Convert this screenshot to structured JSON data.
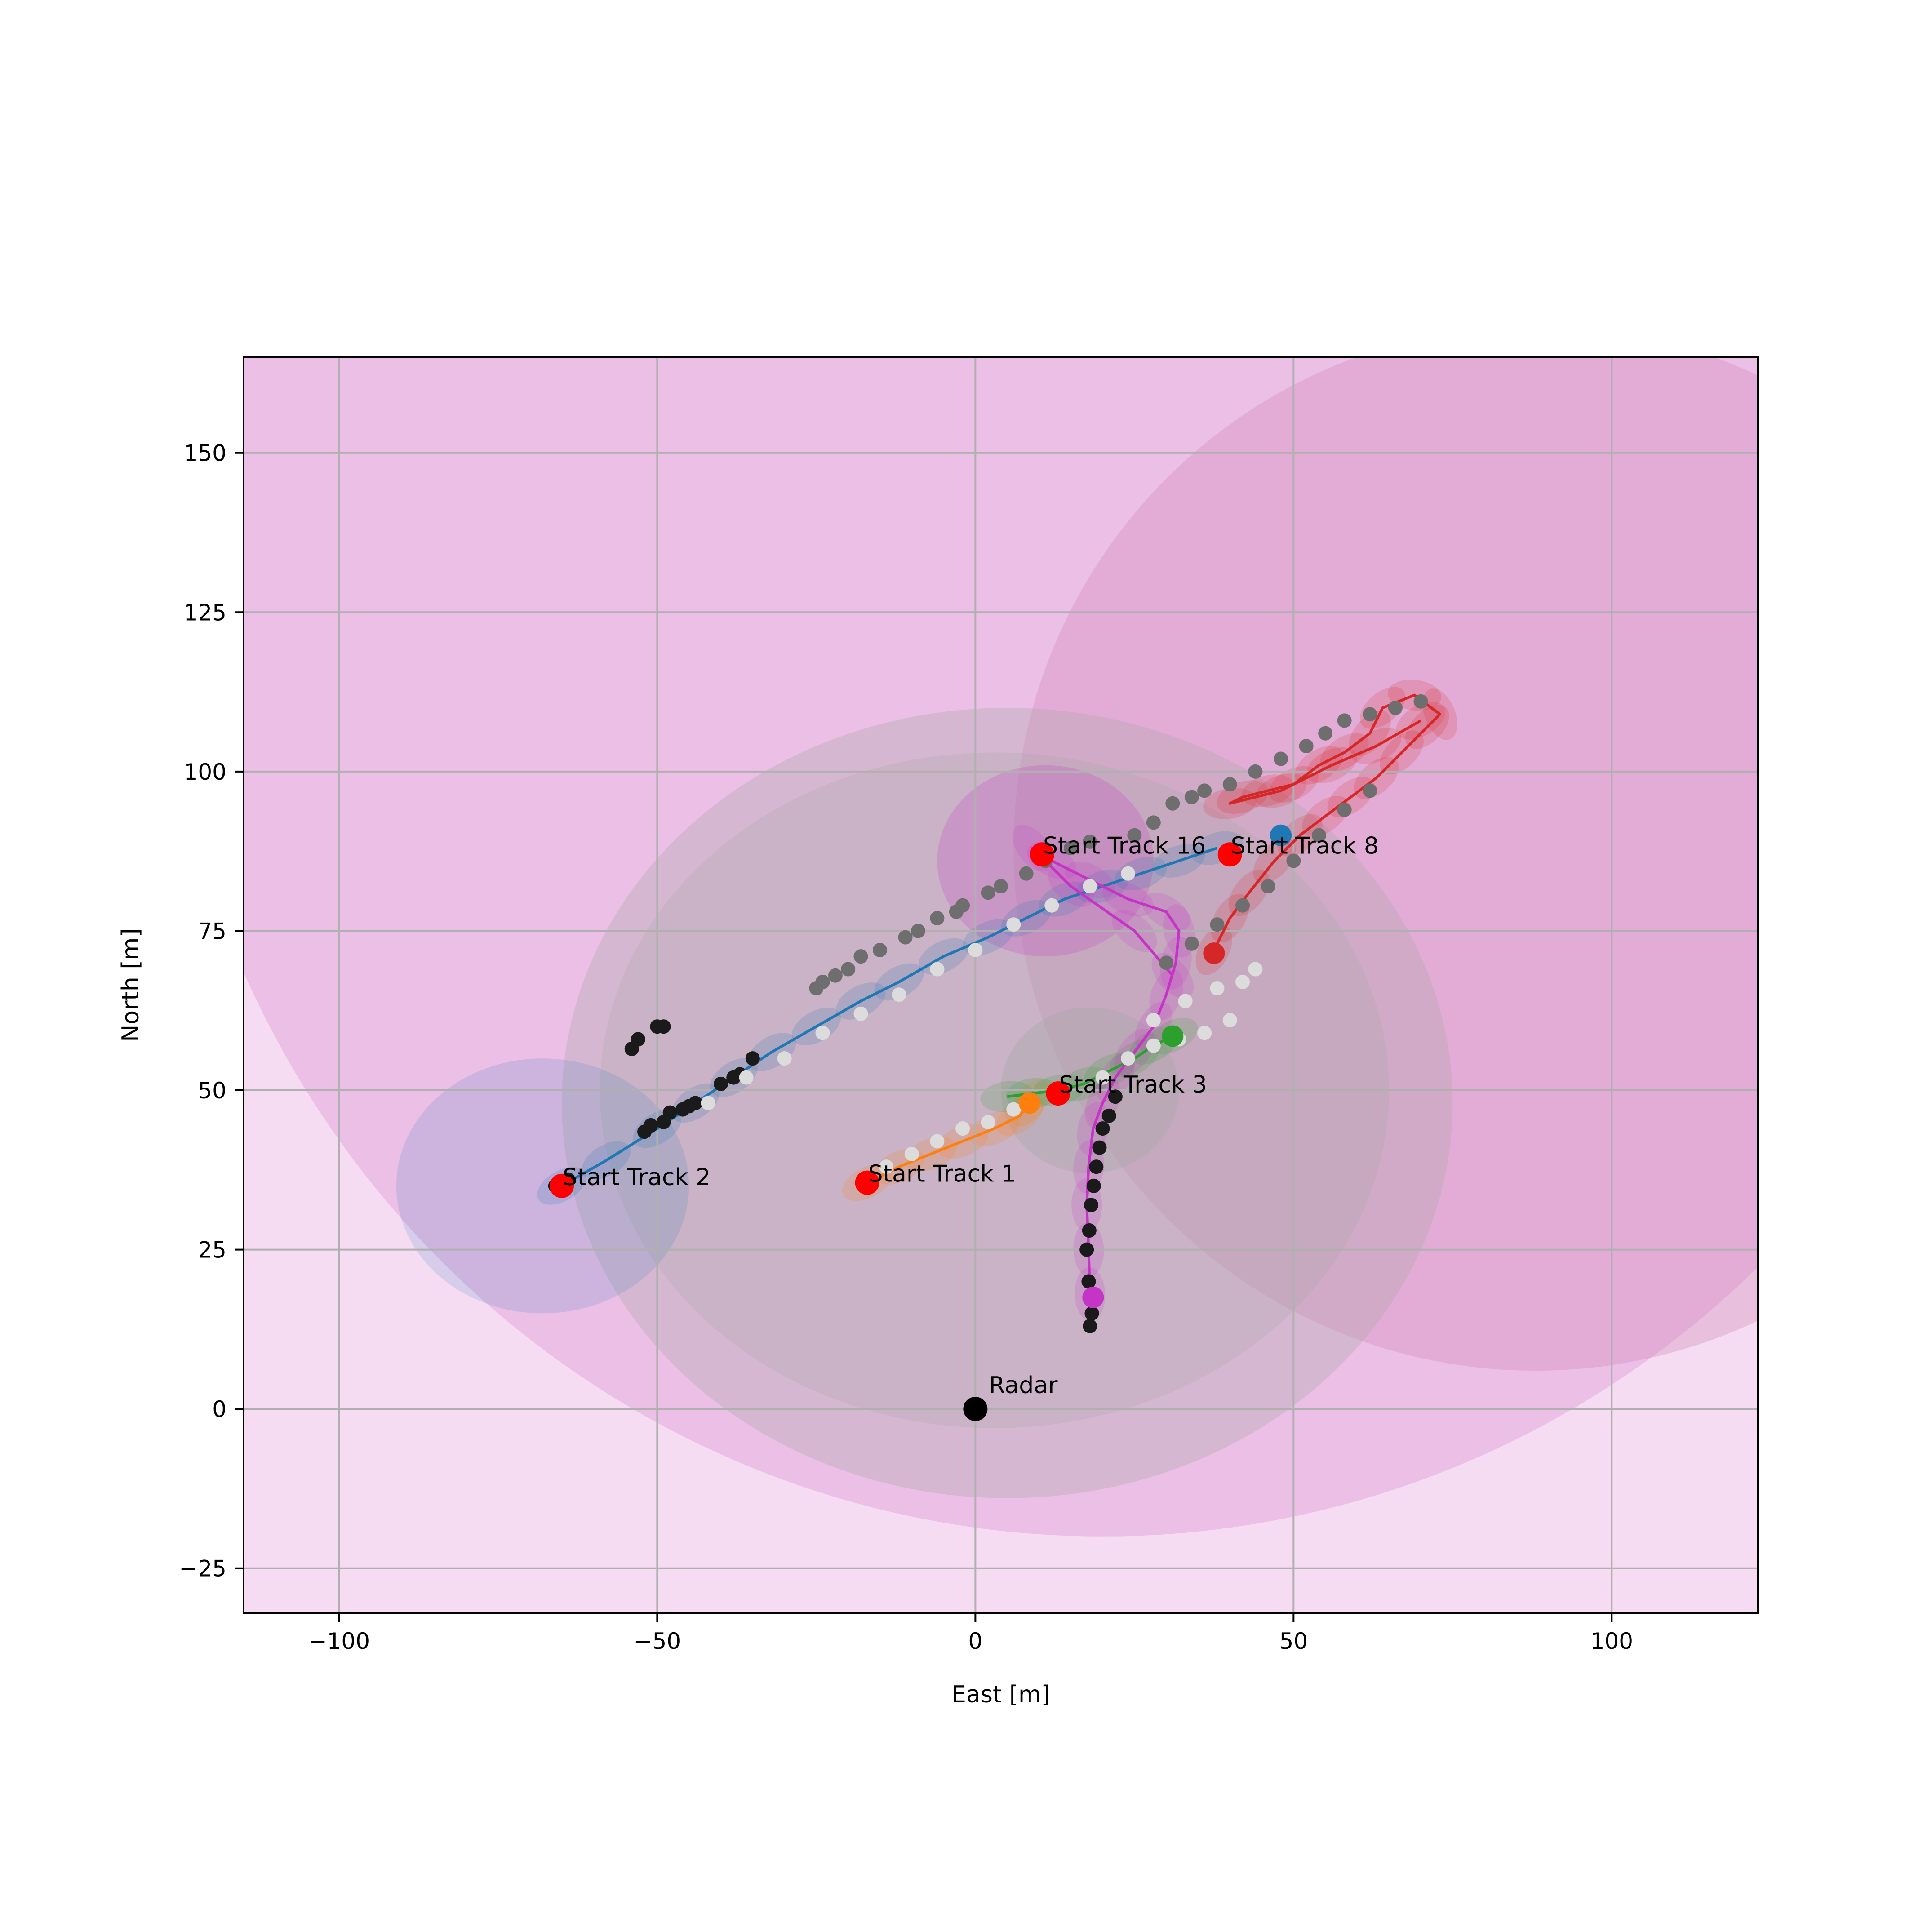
{
  "chart_data": {
    "type": "scatter",
    "xlabel": "East [m]",
    "ylabel": "North [m]",
    "xlim": [
      -115,
      123
    ],
    "ylim": [
      -32,
      165
    ],
    "xticks": [
      -100,
      -50,
      0,
      50,
      100
    ],
    "yticks": [
      -25,
      0,
      25,
      50,
      75,
      100,
      125,
      150
    ],
    "xtick_labels": [
      "−100",
      "−50",
      "0",
      "50",
      "100"
    ],
    "ytick_labels": [
      "−25",
      "0",
      "25",
      "50",
      "75",
      "100",
      "125",
      "150"
    ],
    "grid": true,
    "colors": {
      "background_band": "#f5dcf2",
      "big_circle_1": "#e2a7dc",
      "big_circle_2": "#d28ab8",
      "gray_circle": "#a6a6a6",
      "track1": "#ff7f0e",
      "track2": "#1f77b4",
      "track3": "#2ca02c",
      "track8": "#d62728",
      "track16": "#c535c5",
      "start_marker": "#ff0000",
      "radar": "#000000",
      "detections_dark": "#1a1a1a",
      "detections_gray": "#6e6e6e",
      "detections_light": "#dcdcdc"
    },
    "uncertainty_regions": [
      {
        "cx": 20,
        "cy": 130,
        "rx": 148,
        "ry": 150,
        "color": "big_circle_1",
        "opacity": 0.55
      },
      {
        "cx": 88,
        "cy": 88,
        "rx": 82,
        "ry": 82,
        "color": "big_circle_2",
        "opacity": 0.35
      },
      {
        "cx": 5,
        "cy": 48,
        "rx": 70,
        "ry": 62,
        "color": "gray_circle",
        "opacity": 0.3
      },
      {
        "cx": 3,
        "cy": 50,
        "rx": 62,
        "ry": 53,
        "color": "gray_circle",
        "opacity": 0.25
      },
      {
        "cx": 18,
        "cy": 50,
        "rx": 14,
        "ry": 13,
        "color": "gray_circle",
        "opacity": 0.35
      },
      {
        "cx": -68,
        "cy": 35,
        "rx": 23,
        "ry": 20,
        "color": "track2",
        "opacity": 0.15
      },
      {
        "cx": 11,
        "cy": 86,
        "rx": 17,
        "ry": 15,
        "color": "track16",
        "opacity": 0.22
      }
    ],
    "series": [
      {
        "name": "Track 1",
        "color": "track1",
        "x": [
          -17,
          -12,
          -7,
          -2,
          3,
          7,
          8.5
        ],
        "y": [
          35.5,
          38,
          40,
          42,
          44,
          46,
          48
        ]
      },
      {
        "name": "Track 2",
        "color": "track2",
        "x": [
          -65,
          -58,
          -50,
          -44,
          -38,
          -32,
          -25,
          -18,
          -12,
          -5,
          2,
          8,
          14,
          20,
          26,
          32,
          38
        ],
        "y": [
          35,
          39,
          44,
          48,
          52,
          56,
          60,
          64,
          67,
          71,
          74,
          77,
          80,
          82,
          84,
          86,
          88
        ]
      },
      {
        "name": "Track 3",
        "color": "track3",
        "x": [
          5,
          9,
          13,
          17,
          21,
          25,
          28,
          31
        ],
        "y": [
          49,
          49.5,
          50,
          51,
          53,
          55,
          57,
          58.5
        ]
      },
      {
        "name": "Track 8",
        "color": "track8",
        "x": [
          37.5,
          40,
          43,
          47,
          51,
          55,
          59,
          63,
          67,
          71,
          73,
          69,
          64,
          62,
          58,
          54,
          50,
          46,
          42,
          40,
          48,
          56,
          63,
          70
        ],
        "y": [
          72,
          77,
          81,
          86,
          90,
          93,
          96,
          99,
          103,
          107,
          109,
          112,
          110,
          106,
          103,
          101,
          98,
          97,
          96,
          95,
          97,
          101,
          104,
          108
        ]
      },
      {
        "name": "Track 16",
        "color": "track16",
        "x": [
          18,
          17.8,
          17.5,
          17.8,
          18.5,
          20,
          22,
          25,
          28,
          30,
          31.5,
          32,
          30,
          24,
          18,
          12,
          9,
          15,
          25,
          31
        ],
        "y": [
          18,
          25,
          32,
          38,
          44,
          48,
          52,
          56,
          60,
          65,
          70,
          75,
          78,
          80,
          83,
          86,
          88,
          82,
          75,
          68
        ]
      }
    ],
    "detections": {
      "dark": {
        "x": [
          -66,
          -64,
          -52,
          -51,
          -49,
          -48,
          -46,
          -45,
          -44,
          -54,
          -53,
          -50,
          -49,
          -40,
          -38,
          -37,
          -35,
          18,
          18.3,
          17.8,
          17.5,
          17.9,
          18.2,
          18.6,
          19,
          19.5,
          20,
          21,
          22
        ],
        "y": [
          35,
          36,
          43.5,
          44.5,
          45,
          46.5,
          47,
          47.5,
          48,
          56.5,
          58,
          60,
          60,
          51,
          52,
          52.5,
          55,
          13,
          15,
          20,
          25,
          28,
          32,
          35,
          38,
          41,
          44,
          46,
          49
        ]
      },
      "gray": {
        "x": [
          -25,
          -24,
          -22,
          -20,
          -18,
          -15,
          -11,
          -9,
          -6,
          -3,
          -2,
          2,
          4,
          8,
          11,
          15,
          18,
          25,
          28,
          31,
          34,
          36,
          40,
          44,
          48,
          52,
          55,
          58,
          62,
          66,
          70,
          30,
          34,
          38,
          42,
          46,
          50,
          54,
          58,
          62
        ],
        "y": [
          66,
          67,
          68,
          69,
          71,
          72,
          74,
          75,
          77,
          78,
          79,
          81,
          82,
          84,
          86,
          88,
          89,
          90,
          92,
          95,
          96,
          97,
          98,
          100,
          102,
          104,
          106,
          108,
          109,
          110,
          111,
          70,
          73,
          76,
          79,
          82,
          86,
          90,
          94,
          97
        ]
      },
      "light": {
        "x": [
          -42,
          -36,
          -30,
          -24,
          -18,
          -12,
          -6,
          0,
          6,
          12,
          18,
          24,
          28,
          33,
          38,
          42,
          44,
          -14,
          -10,
          -6,
          -2,
          2,
          6,
          20,
          24,
          28,
          32,
          36,
          40
        ],
        "y": [
          48,
          52,
          55,
          59,
          62,
          65,
          69,
          72,
          76,
          79,
          82,
          84,
          61,
          64,
          66,
          67,
          69,
          38,
          40,
          42,
          44,
          45,
          47,
          52,
          55,
          57,
          58,
          59,
          61
        ]
      }
    },
    "start_markers": [
      {
        "label": "Start Track 1",
        "x": -17,
        "y": 35.5
      },
      {
        "label": "Start Track 2",
        "x": -65,
        "y": 35
      },
      {
        "label": "Start Track 3",
        "x": 13,
        "y": 49.5
      },
      {
        "label": "Start Track 8",
        "x": 40,
        "y": 87
      },
      {
        "label": "Start Track 16",
        "x": 10.5,
        "y": 87
      }
    ],
    "end_markers": [
      {
        "color": "track1",
        "x": 8.5,
        "y": 48
      },
      {
        "color": "track3",
        "x": 31,
        "y": 58.5
      },
      {
        "color": "track8",
        "x": 37.5,
        "y": 71.5
      },
      {
        "color": "track16",
        "x": 18.5,
        "y": 17.5
      },
      {
        "color": "track2",
        "x": 48,
        "y": 90
      }
    ],
    "radar": {
      "label": "Radar",
      "x": 0,
      "y": 0
    }
  }
}
